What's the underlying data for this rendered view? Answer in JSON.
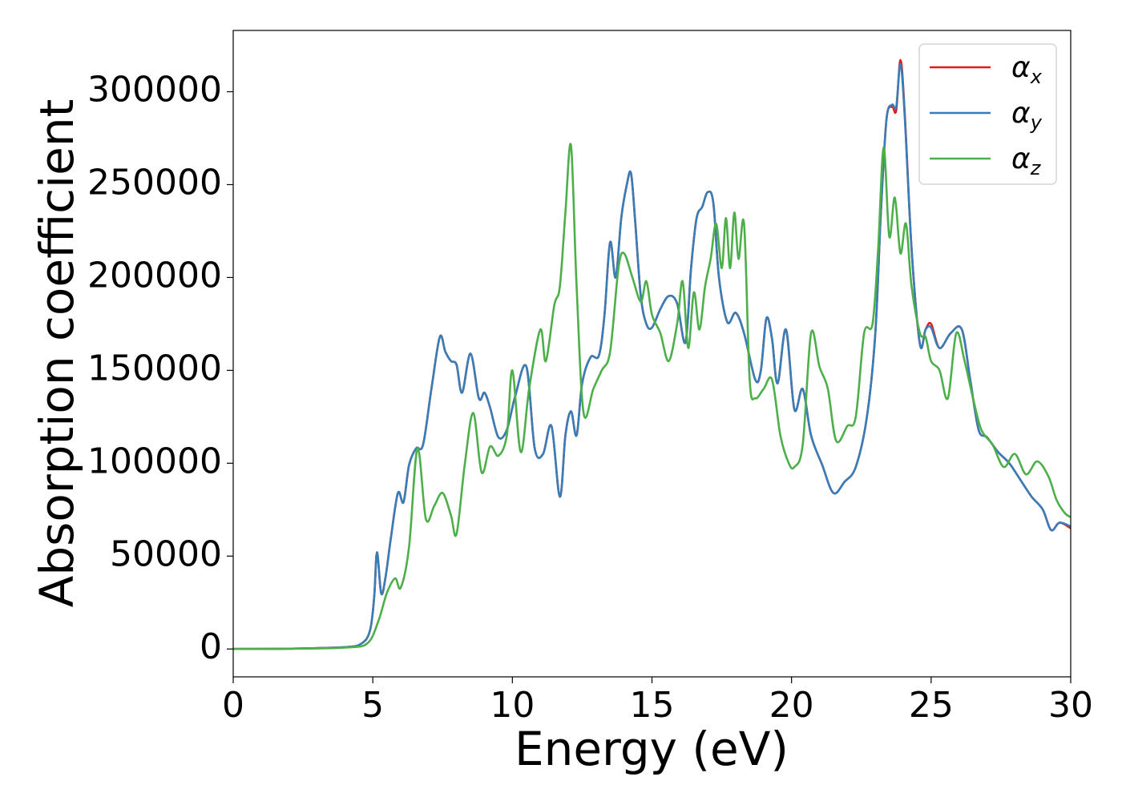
{
  "chart_data": {
    "type": "line",
    "title": "",
    "xlabel": "Energy (eV)",
    "ylabel": "Absorption coefficient",
    "xlim": [
      0,
      30
    ],
    "ylim": [
      -15000,
      333000
    ],
    "xticks": [
      0,
      5,
      10,
      15,
      20,
      25,
      30
    ],
    "xtick_labels": [
      "0",
      "5",
      "10",
      "15",
      "20",
      "25",
      "30"
    ],
    "yticks": [
      0,
      50000,
      100000,
      150000,
      200000,
      250000,
      300000
    ],
    "ytick_labels": [
      "0",
      "50000",
      "100000",
      "150000",
      "200000",
      "250000",
      "300000"
    ],
    "grid": false,
    "legend_position": "top-right",
    "series": [
      {
        "name": "α_x",
        "symbol": "α",
        "subscript": "x",
        "color": "#e41a1c",
        "x": [
          0,
          2,
          4,
          4.6,
          4.9,
          5.05,
          5.15,
          5.3,
          5.45,
          5.65,
          5.9,
          6.1,
          6.3,
          6.55,
          6.8,
          7.1,
          7.4,
          7.6,
          7.8,
          8.0,
          8.2,
          8.5,
          8.8,
          9.0,
          9.2,
          9.5,
          9.8,
          10.1,
          10.5,
          10.8,
          11.1,
          11.4,
          11.7,
          11.9,
          12.1,
          12.3,
          12.5,
          12.8,
          13.1,
          13.3,
          13.5,
          13.7,
          13.9,
          14.1,
          14.25,
          14.4,
          14.6,
          14.8,
          15.0,
          15.3,
          15.6,
          15.9,
          16.2,
          16.4,
          16.6,
          16.8,
          17.0,
          17.2,
          17.4,
          17.7,
          18.0,
          18.3,
          18.7,
          18.9,
          19.1,
          19.3,
          19.5,
          19.8,
          20.1,
          20.4,
          20.7,
          21.1,
          21.5,
          21.9,
          22.3,
          22.7,
          23.0,
          23.2,
          23.4,
          23.6,
          23.75,
          23.9,
          24.05,
          24.3,
          24.6,
          24.8,
          25.0,
          25.3,
          25.7,
          26.1,
          26.4,
          26.7,
          27.0,
          27.4,
          27.8,
          28.2,
          28.6,
          29.0,
          29.3,
          29.6,
          30.0
        ],
        "y": [
          0,
          200,
          1000,
          3000,
          10000,
          28000,
          52000,
          30000,
          38000,
          60000,
          84000,
          79000,
          99000,
          108000,
          110000,
          140000,
          168000,
          160000,
          155000,
          153000,
          138000,
          159000,
          135000,
          138000,
          130000,
          114000,
          118000,
          136000,
          152000,
          108000,
          105000,
          120000,
          82000,
          115000,
          128000,
          115000,
          143000,
          157000,
          158000,
          180000,
          219000,
          200000,
          232000,
          250000,
          256000,
          230000,
          190000,
          175000,
          173000,
          183000,
          190000,
          186000,
          165000,
          205000,
          232000,
          238000,
          246000,
          240000,
          200000,
          176000,
          181000,
          170000,
          145000,
          150000,
          178000,
          167000,
          143000,
          172000,
          129000,
          140000,
          115000,
          99000,
          84000,
          90000,
          98000,
          125000,
          170000,
          235000,
          285000,
          292000,
          290000,
          317000,
          290000,
          215000,
          164000,
          172000,
          175000,
          162000,
          170000,
          172000,
          145000,
          118000,
          114000,
          106000,
          100000,
          91000,
          82000,
          75000,
          64000,
          68000,
          65000
        ]
      },
      {
        "name": "α_y",
        "symbol": "α",
        "subscript": "y",
        "color": "#377eb8",
        "x": [
          0,
          2,
          4,
          4.6,
          4.9,
          5.05,
          5.15,
          5.3,
          5.45,
          5.65,
          5.9,
          6.1,
          6.3,
          6.55,
          6.8,
          7.1,
          7.4,
          7.6,
          7.8,
          8.0,
          8.2,
          8.5,
          8.8,
          9.0,
          9.2,
          9.5,
          9.8,
          10.1,
          10.5,
          10.8,
          11.1,
          11.4,
          11.7,
          11.9,
          12.1,
          12.3,
          12.5,
          12.8,
          13.1,
          13.3,
          13.5,
          13.7,
          13.9,
          14.1,
          14.25,
          14.4,
          14.6,
          14.8,
          15.0,
          15.3,
          15.6,
          15.9,
          16.2,
          16.4,
          16.6,
          16.8,
          17.0,
          17.2,
          17.4,
          17.7,
          18.0,
          18.3,
          18.7,
          18.9,
          19.1,
          19.3,
          19.5,
          19.8,
          20.1,
          20.4,
          20.7,
          21.1,
          21.5,
          21.9,
          22.3,
          22.7,
          23.0,
          23.2,
          23.4,
          23.6,
          23.75,
          23.9,
          24.05,
          24.3,
          24.6,
          24.8,
          25.0,
          25.3,
          25.7,
          26.1,
          26.4,
          26.7,
          27.0,
          27.4,
          27.8,
          28.2,
          28.6,
          29.0,
          29.3,
          29.6,
          30.0
        ],
        "y": [
          0,
          200,
          1000,
          3000,
          10000,
          28000,
          52000,
          30000,
          38000,
          60000,
          84000,
          79000,
          99000,
          108000,
          110000,
          140000,
          168000,
          160000,
          155000,
          153000,
          138000,
          159000,
          135000,
          138000,
          130000,
          114000,
          118000,
          136000,
          152000,
          108000,
          105000,
          120000,
          82000,
          115000,
          128000,
          115000,
          143000,
          157000,
          158000,
          180000,
          219000,
          200000,
          232000,
          250000,
          256000,
          230000,
          190000,
          175000,
          173000,
          183000,
          190000,
          186000,
          165000,
          205000,
          232000,
          238000,
          246000,
          240000,
          200000,
          176000,
          181000,
          170000,
          145000,
          150000,
          178000,
          167000,
          143000,
          172000,
          129000,
          140000,
          115000,
          99000,
          84000,
          90000,
          98000,
          125000,
          170000,
          235000,
          285000,
          293000,
          292000,
          315000,
          288000,
          215000,
          164000,
          172000,
          173000,
          162000,
          170000,
          172000,
          145000,
          118000,
          114000,
          106000,
          100000,
          91000,
          82000,
          75000,
          64000,
          68000,
          66000
        ]
      },
      {
        "name": "α_z",
        "symbol": "α",
        "subscript": "z",
        "color": "#4daf4a",
        "x": [
          0,
          2,
          4,
          4.8,
          5.2,
          5.5,
          5.8,
          6.0,
          6.3,
          6.6,
          6.9,
          7.2,
          7.5,
          7.8,
          8.0,
          8.3,
          8.6,
          8.9,
          9.2,
          9.5,
          9.8,
          10.0,
          10.3,
          10.6,
          11.0,
          11.2,
          11.5,
          11.7,
          11.9,
          12.1,
          12.3,
          12.55,
          12.9,
          13.2,
          13.5,
          13.8,
          14.0,
          14.3,
          14.6,
          14.8,
          15.0,
          15.3,
          15.6,
          15.9,
          16.1,
          16.3,
          16.5,
          16.7,
          16.9,
          17.1,
          17.3,
          17.5,
          17.65,
          17.8,
          17.95,
          18.1,
          18.3,
          18.5,
          18.7,
          19.0,
          19.3,
          19.6,
          19.9,
          20.1,
          20.4,
          20.7,
          21.0,
          21.3,
          21.6,
          22.0,
          22.3,
          22.6,
          22.9,
          23.1,
          23.3,
          23.5,
          23.7,
          23.9,
          24.1,
          24.3,
          24.6,
          24.8,
          25.0,
          25.3,
          25.6,
          25.9,
          26.2,
          26.5,
          26.8,
          27.2,
          27.6,
          28.0,
          28.4,
          28.8,
          29.2,
          29.5,
          29.8,
          30.0
        ],
        "y": [
          0,
          150,
          800,
          3000,
          15000,
          30000,
          38000,
          33000,
          55000,
          108000,
          70000,
          77000,
          84000,
          72000,
          62000,
          100000,
          127000,
          95000,
          109000,
          104000,
          115000,
          150000,
          106000,
          140000,
          172000,
          155000,
          185000,
          195000,
          235000,
          271000,
          195000,
          127000,
          140000,
          150000,
          160000,
          205000,
          213000,
          200000,
          187000,
          198000,
          180000,
          170000,
          155000,
          175000,
          198000,
          162000,
          192000,
          172000,
          195000,
          210000,
          229000,
          205000,
          232000,
          205000,
          235000,
          210000,
          229000,
          145000,
          135000,
          140000,
          145000,
          115000,
          100000,
          98000,
          110000,
          170000,
          152000,
          140000,
          112000,
          120000,
          125000,
          170000,
          175000,
          215000,
          270000,
          222000,
          243000,
          213000,
          229000,
          195000,
          170000,
          168000,
          155000,
          150000,
          135000,
          170000,
          155000,
          135000,
          118000,
          110000,
          98000,
          105000,
          94000,
          101000,
          93000,
          80000,
          73000,
          71000
        ]
      }
    ]
  }
}
